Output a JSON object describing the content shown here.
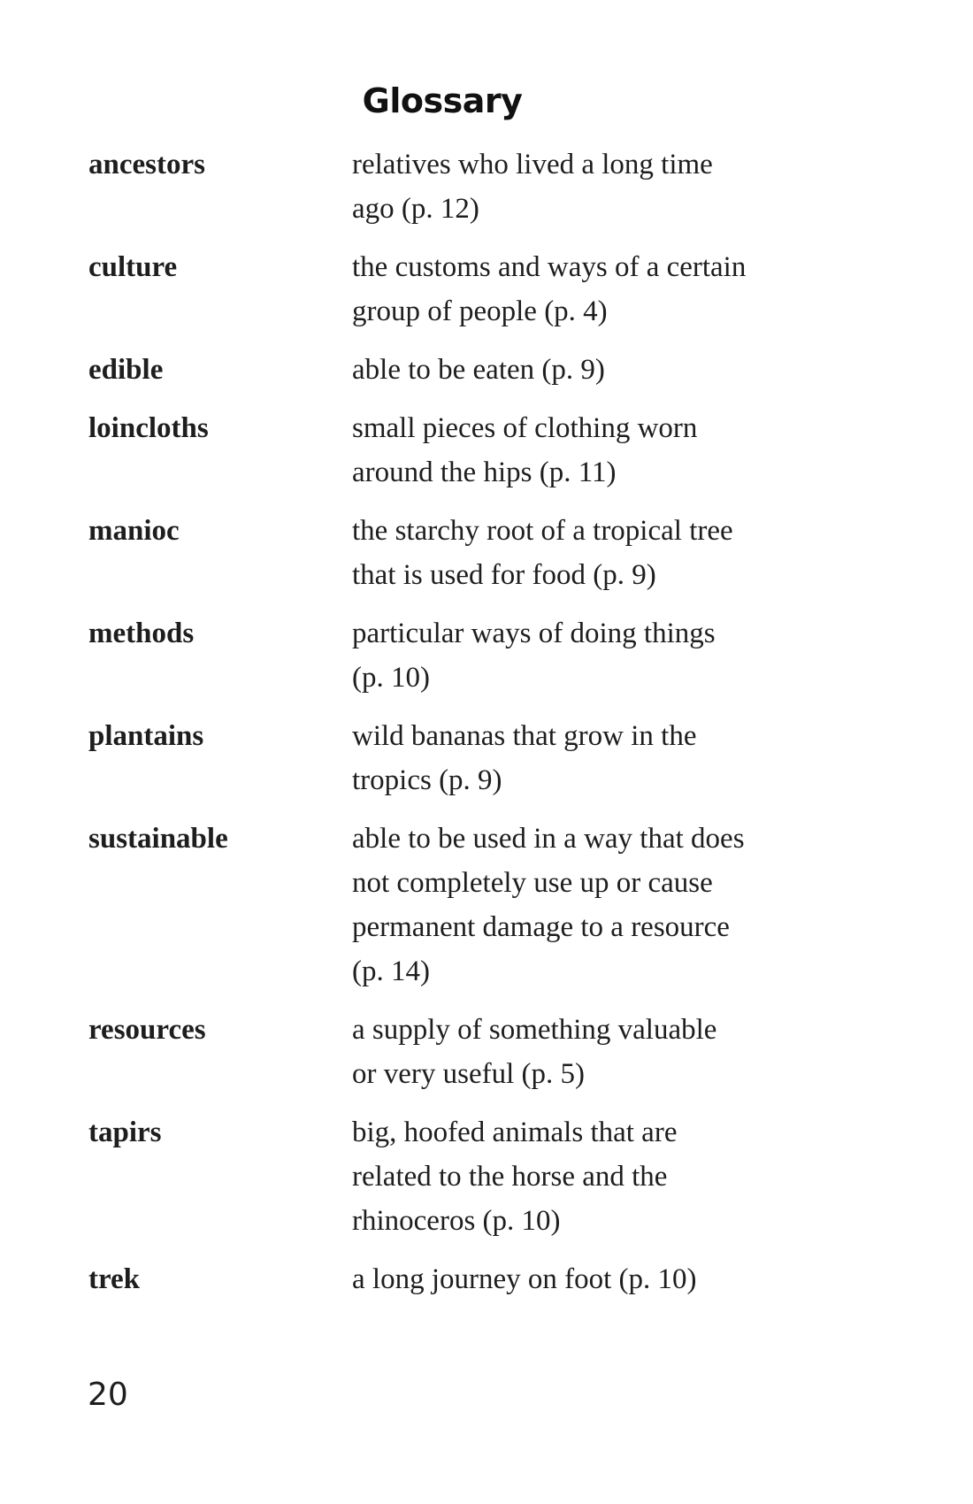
{
  "page": {
    "title": "Glossary",
    "page_number": "20"
  },
  "glossary": [
    {
      "term": "ancestors",
      "lines": [
        "relatives who lived a long time",
        "ago (p. 12)"
      ]
    },
    {
      "term": "culture",
      "lines": [
        "the customs and ways of a certain",
        "group of people (p. 4)"
      ]
    },
    {
      "term": "edible",
      "lines": [
        "able to be eaten (p. 9)"
      ]
    },
    {
      "term": "loincloths",
      "lines": [
        "small pieces of clothing worn",
        "around the hips (p. 11)"
      ]
    },
    {
      "term": "manioc",
      "lines": [
        "the starchy root of a tropical tree",
        "that is used for food (p. 9)"
      ]
    },
    {
      "term": "methods",
      "lines": [
        "particular ways of doing things",
        "(p. 10)"
      ]
    },
    {
      "term": "plantains",
      "lines": [
        "wild bananas that grow in the",
        "tropics (p. 9)"
      ]
    },
    {
      "term": "sustainable",
      "lines": [
        "able to be used in a way that does",
        "not completely use up or cause",
        "permanent damage to a resource",
        "(p. 14)"
      ]
    },
    {
      "term": "resources",
      "lines": [
        "a supply of something valuable",
        "or very useful (p. 5)"
      ]
    },
    {
      "term": "tapirs",
      "lines": [
        "big, hoofed animals that are",
        "related to the horse and the",
        "rhinoceros (p. 10)"
      ]
    },
    {
      "term": "trek",
      "lines": [
        "a long journey on foot (p. 10)"
      ]
    }
  ]
}
